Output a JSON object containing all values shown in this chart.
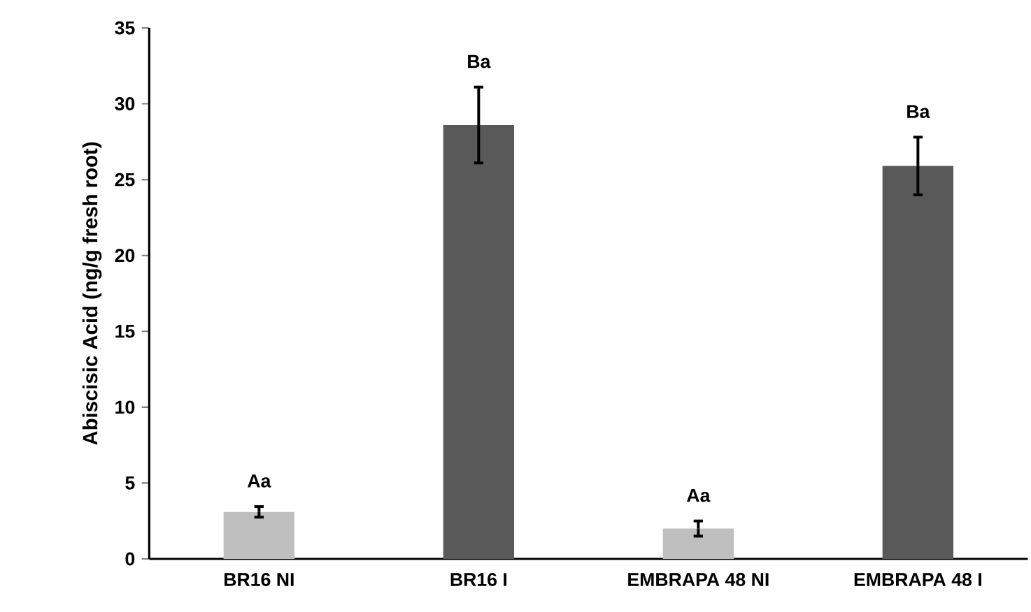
{
  "chart_data": {
    "type": "bar",
    "ylabel": "Abiscisic Acid (ng/g fresh root)",
    "categories": [
      "BR16 NI",
      "BR16 I",
      "EMBRAPA 48 NI",
      "EMBRAPA 48 I"
    ],
    "values": [
      3.1,
      28.6,
      2.0,
      25.9
    ],
    "errors": [
      0.35,
      2.5,
      0.5,
      1.9
    ],
    "colors": [
      "#bfbfbf",
      "#595959",
      "#bfbfbf",
      "#595959"
    ],
    "ylim": [
      0,
      35
    ],
    "yticks": [
      0,
      5,
      10,
      15,
      20,
      25,
      30,
      35
    ],
    "annotations": [
      "Aa",
      "Ba",
      "Aa",
      "Ba"
    ],
    "grid": false
  }
}
